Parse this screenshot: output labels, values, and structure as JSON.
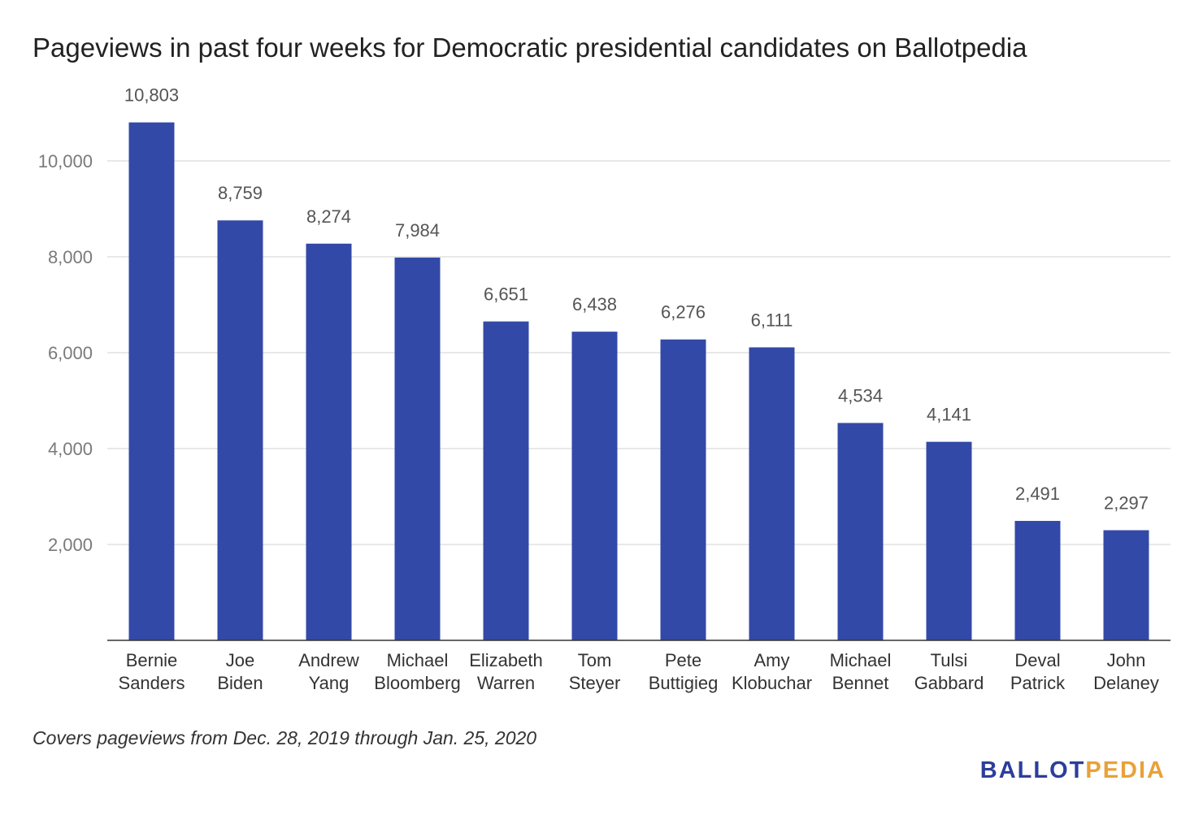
{
  "brand": {
    "logo_part1": "BALLOT",
    "logo_part2": "PEDIA"
  },
  "footnote": "Covers pageviews from Dec. 28, 2019 through Jan. 25, 2020",
  "colors": {
    "bar": "#3349a8",
    "gridline": "#d9d9d9",
    "axis": "#333333",
    "tick_label": "#7a7a7a",
    "category_label": "#333333",
    "data_label": "#555555",
    "logo_part1": "#2c3e9b",
    "logo_part2": "#e8a13a"
  },
  "chart_data": {
    "type": "bar",
    "title": "Pageviews in past four weeks for Democratic presidential candidates on Ballotpedia",
    "xlabel": "",
    "ylabel": "",
    "ylim": [
      0,
      10000
    ],
    "grid": true,
    "legend": "none",
    "yticks": [
      2000,
      4000,
      6000,
      8000,
      10000
    ],
    "ytick_labels": [
      "2,000",
      "4,000",
      "6,000",
      "8,000",
      "10,000"
    ],
    "categories": [
      [
        "Bernie",
        "Sanders"
      ],
      [
        "Joe",
        "Biden"
      ],
      [
        "Andrew",
        "Yang"
      ],
      [
        "Michael",
        "Bloomberg"
      ],
      [
        "Elizabeth",
        "Warren"
      ],
      [
        "Tom",
        "Steyer"
      ],
      [
        "Pete",
        "Buttigieg"
      ],
      [
        "Amy",
        "Klobuchar"
      ],
      [
        "Michael",
        "Bennet"
      ],
      [
        "Tulsi",
        "Gabbard"
      ],
      [
        "Deval",
        "Patrick"
      ],
      [
        "John",
        "Delaney"
      ]
    ],
    "values": [
      10803,
      8759,
      8274,
      7984,
      6651,
      6438,
      6276,
      6111,
      4534,
      4141,
      2491,
      2297
    ],
    "value_labels": [
      "10,803",
      "8,759",
      "8,274",
      "7,984",
      "6,651",
      "6,438",
      "6,276",
      "6,111",
      "4,534",
      "4,141",
      "2,491",
      "2,297"
    ]
  }
}
